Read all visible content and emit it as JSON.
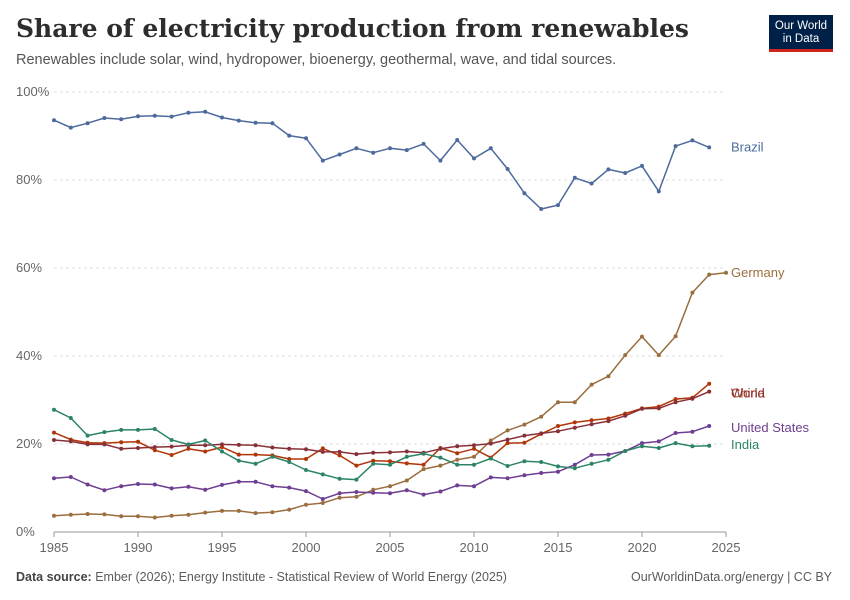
{
  "header": {
    "title": "Share of electricity production from renewables",
    "subtitle": "Renewables include solar, wind, hydropower, bioenergy, geothermal, wave, and tidal sources."
  },
  "logo": {
    "line1": "Our World",
    "line2": "in Data"
  },
  "footer": {
    "source_label": "Data source:",
    "source_text": "Ember (2026); Energy Institute - Statistical Review of World Energy (2025)",
    "credit": "OurWorldinData.org/energy | CC BY"
  },
  "chart_data": {
    "type": "line",
    "title": "Share of electricity production from renewables",
    "xlabel": "",
    "ylabel": "",
    "xlim": [
      1985,
      2025
    ],
    "ylim": [
      0,
      100
    ],
    "x_ticks": [
      1985,
      1990,
      1995,
      2000,
      2005,
      2010,
      2015,
      2020,
      2025
    ],
    "y_ticks": [
      0,
      20,
      40,
      60,
      80,
      100
    ],
    "y_tick_labels": [
      "0%",
      "20%",
      "40%",
      "60%",
      "80%",
      "100%"
    ],
    "grid": "horizontal dashed",
    "legend": "inline labels at right end",
    "x": [
      1985,
      1986,
      1987,
      1988,
      1989,
      1990,
      1991,
      1992,
      1993,
      1994,
      1995,
      1996,
      1997,
      1998,
      1999,
      2000,
      2001,
      2002,
      2003,
      2004,
      2005,
      2006,
      2007,
      2008,
      2009,
      2010,
      2011,
      2012,
      2013,
      2014,
      2015,
      2016,
      2017,
      2018,
      2019,
      2020,
      2021,
      2022,
      2023,
      2024,
      2025
    ],
    "series": [
      {
        "name": "Brazil",
        "color": "#4c6a9c",
        "values": [
          93.6,
          91.9,
          92.9,
          94.1,
          93.8,
          94.5,
          94.6,
          94.4,
          95.3,
          95.5,
          94.2,
          93.5,
          93.0,
          92.9,
          90.1,
          89.5,
          84.4,
          85.8,
          87.2,
          86.2,
          87.2,
          86.8,
          88.2,
          84.4,
          89.1,
          84.9,
          87.2,
          82.5,
          77.0,
          73.4,
          74.3,
          80.5,
          79.2,
          82.4,
          81.6,
          83.2,
          77.4,
          87.7,
          89.0,
          87.4,
          null
        ]
      },
      {
        "name": "Germany",
        "color": "#9a6e3f",
        "values": [
          3.7,
          3.9,
          4.1,
          4.0,
          3.6,
          3.6,
          3.3,
          3.7,
          3.9,
          4.4,
          4.8,
          4.8,
          4.3,
          4.5,
          5.1,
          6.2,
          6.6,
          7.8,
          8.0,
          9.6,
          10.4,
          11.7,
          14.3,
          15.1,
          16.4,
          17.1,
          20.8,
          23.1,
          24.4,
          26.2,
          29.5,
          29.5,
          33.5,
          35.4,
          40.2,
          44.4,
          40.2,
          44.5,
          54.4,
          58.5,
          58.9
        ]
      },
      {
        "name": "China",
        "color": "#b13507",
        "values": [
          22.6,
          21.0,
          20.3,
          20.2,
          20.4,
          20.5,
          18.6,
          17.5,
          18.9,
          18.3,
          19.3,
          17.6,
          17.6,
          17.4,
          16.6,
          16.6,
          19.0,
          17.4,
          15.1,
          16.2,
          16.1,
          15.6,
          15.3,
          19.1,
          17.9,
          18.9,
          16.9,
          20.2,
          20.3,
          22.3,
          24.1,
          24.9,
          25.4,
          25.8,
          26.9,
          28.1,
          28.5,
          30.2,
          30.5,
          33.7,
          null
        ]
      },
      {
        "name": "World",
        "color": "#883039",
        "values": [
          20.9,
          20.6,
          19.9,
          19.9,
          18.9,
          19.1,
          19.3,
          19.4,
          19.7,
          19.7,
          19.9,
          19.8,
          19.7,
          19.2,
          18.9,
          18.8,
          18.2,
          18.2,
          17.7,
          18.0,
          18.1,
          18.3,
          18.0,
          18.9,
          19.5,
          19.7,
          20.1,
          21.0,
          21.9,
          22.4,
          22.9,
          23.7,
          24.5,
          25.2,
          26.4,
          28.0,
          28.1,
          29.5,
          30.3,
          31.9,
          null
        ]
      },
      {
        "name": "United States",
        "color": "#6d3e91",
        "values": [
          12.2,
          12.5,
          10.8,
          9.5,
          10.4,
          10.9,
          10.8,
          9.9,
          10.3,
          9.6,
          10.7,
          11.4,
          11.4,
          10.4,
          10.1,
          9.3,
          7.5,
          8.8,
          9.1,
          8.9,
          8.8,
          9.5,
          8.5,
          9.2,
          10.6,
          10.4,
          12.4,
          12.2,
          12.9,
          13.4,
          13.7,
          15.3,
          17.5,
          17.6,
          18.4,
          20.2,
          20.6,
          22.5,
          22.8,
          24.1,
          null
        ]
      },
      {
        "name": "India",
        "color": "#2c8465",
        "values": [
          27.8,
          25.9,
          21.9,
          22.7,
          23.2,
          23.2,
          23.4,
          20.9,
          19.9,
          20.8,
          18.3,
          16.2,
          15.5,
          17.1,
          15.9,
          14.1,
          13.1,
          12.1,
          11.9,
          15.5,
          15.3,
          17.1,
          17.8,
          16.9,
          15.3,
          15.3,
          16.7,
          15.0,
          16.1,
          15.9,
          14.9,
          14.5,
          15.5,
          16.4,
          18.4,
          19.5,
          19.1,
          20.2,
          19.5,
          19.6,
          null
        ]
      }
    ]
  }
}
